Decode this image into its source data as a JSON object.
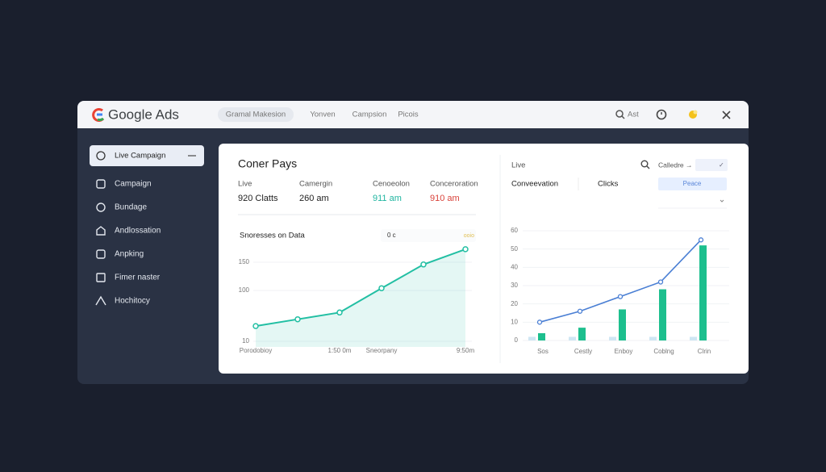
{
  "header": {
    "logo": "Google Ads",
    "tabs": [
      "Gramal Makesion",
      "Yonven",
      "Campsion",
      "Picois"
    ],
    "search": "Ast"
  },
  "sidebar": {
    "items": [
      "Live Campaign",
      "Campaign",
      "Bundage",
      "Andlossation",
      "Anpking",
      "Fimer naster",
      "Hochitocy"
    ]
  },
  "summary": {
    "title": "Coner Pays",
    "stats": [
      {
        "label": "Live",
        "value": "920 Clatts"
      },
      {
        "label": "Camergin",
        "value": "260 am"
      },
      {
        "label": "Cenoeolon",
        "value": "911 am"
      },
      {
        "label": "Conceroration",
        "value": "910 am"
      }
    ]
  },
  "line_chart": {
    "type": "line",
    "title": "Snoresses on Data",
    "note": "0 c",
    "legend": "ooio",
    "categories": [
      "Porodobioy",
      null,
      "1:50 0m",
      "Sneorpany",
      null,
      "9:50m"
    ],
    "values": [
      37,
      49,
      61,
      104,
      146,
      173
    ],
    "color": "#22bfa3",
    "ylim": [
      0,
      200
    ],
    "yticks": [
      10,
      100,
      150
    ],
    "grid": true
  },
  "bar_chart": {
    "type": "bar",
    "label": "Live",
    "filter": "Calledre →",
    "check": "✓",
    "button": "Peace",
    "categories": [
      "Sos",
      "Cestly",
      "Enboy",
      "Coblng",
      "Clrin"
    ],
    "series": [
      {
        "name": "Conveevation",
        "type": "line",
        "color": "#4a7fd4",
        "values": [
          10,
          16,
          24,
          32,
          55
        ]
      },
      {
        "name": "Clicks",
        "color": "#1dbf8e",
        "values": [
          4,
          7,
          17,
          28,
          52
        ]
      },
      {
        "color": "#cfe6f3",
        "values": [
          2,
          2,
          2,
          2,
          2
        ]
      }
    ],
    "ylim": [
      0,
      60
    ],
    "yticks": [
      0,
      10,
      20,
      30,
      40,
      50,
      60
    ],
    "grid": true
  }
}
